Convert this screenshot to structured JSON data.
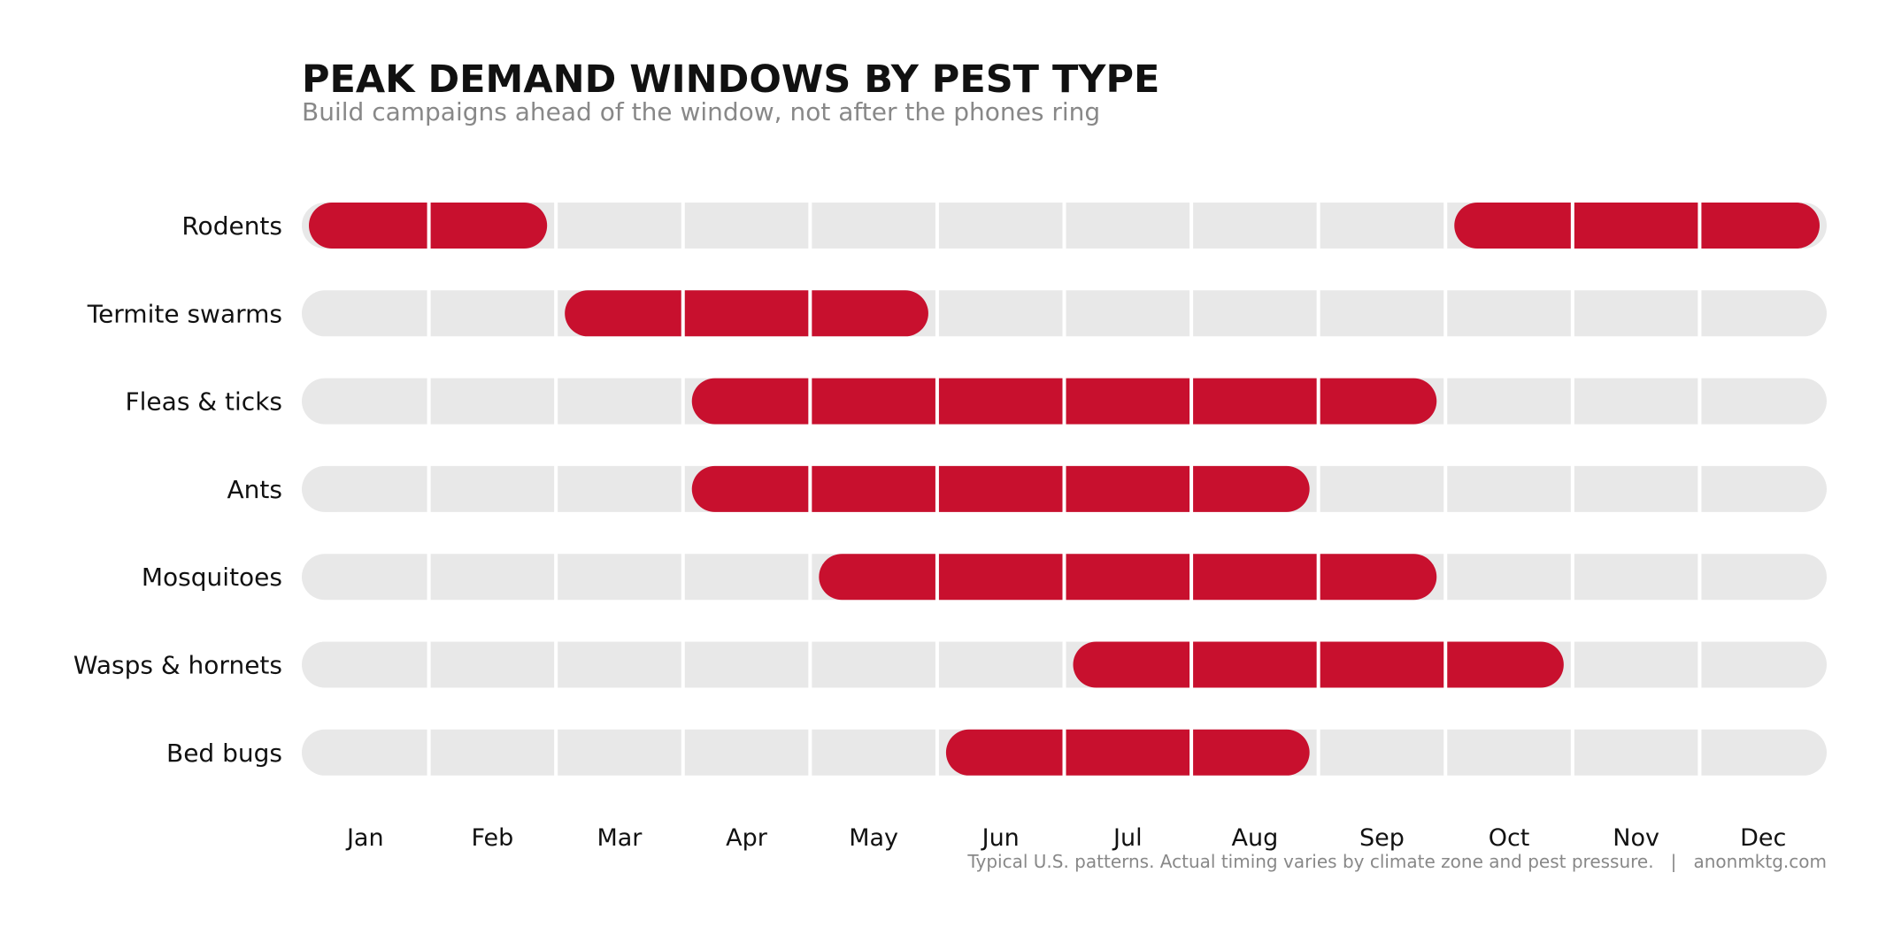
{
  "chart_data": {
    "type": "timeline",
    "title": "PEAK DEMAND WINDOWS BY PEST TYPE",
    "subtitle": "Build campaigns ahead of the window, not after the phones ring",
    "months": [
      "Jan",
      "Feb",
      "Mar",
      "Apr",
      "May",
      "Jun",
      "Jul",
      "Aug",
      "Sep",
      "Oct",
      "Nov",
      "Dec"
    ],
    "rows": [
      {
        "name": "Rodents",
        "windows": [
          [
            "Jan",
            "Feb"
          ],
          [
            "Oct",
            "Dec"
          ]
        ]
      },
      {
        "name": "Termite swarms",
        "windows": [
          [
            "Mar",
            "May"
          ]
        ]
      },
      {
        "name": "Fleas & ticks",
        "windows": [
          [
            "Apr",
            "Sep"
          ]
        ]
      },
      {
        "name": "Ants",
        "windows": [
          [
            "Apr",
            "Aug"
          ]
        ]
      },
      {
        "name": "Mosquitoes",
        "windows": [
          [
            "May",
            "Sep"
          ]
        ]
      },
      {
        "name": "Wasps & hornets",
        "windows": [
          [
            "Jul",
            "Oct"
          ]
        ]
      },
      {
        "name": "Bed bugs",
        "windows": [
          [
            "Jun",
            "Aug"
          ]
        ]
      }
    ],
    "footnote": "Typical U.S. patterns. Actual timing varies by climate zone and pest pressure.   |   anonmktg.com",
    "colors": {
      "peak": "#C8102E",
      "track": "#E8E8E8",
      "divider": "#FFFFFF",
      "title": "#111111",
      "subtitle": "#888888",
      "labels": "#111111",
      "footnote": "#888888"
    }
  }
}
